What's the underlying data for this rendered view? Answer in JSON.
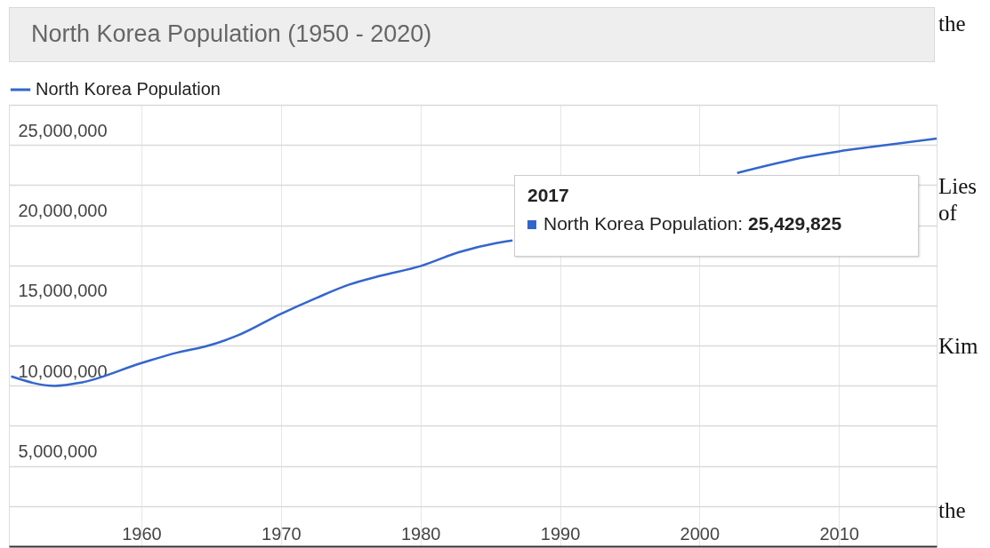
{
  "chart_data": {
    "type": "line",
    "title": "North Korea Population (1950 - 2020)",
    "x": [
      1950.66,
      1953.8,
      1955.7,
      1960,
      1962.6,
      1964.6,
      1966.9,
      1970,
      1972.6,
      1974.9,
      1977.2,
      1980,
      1982.8,
      1985.5,
      1986.6,
      1990,
      1995,
      2000,
      2002.7,
      2007.7,
      2010,
      2012.4,
      2017
    ],
    "series": [
      {
        "name": "North Korea Population",
        "color": "#3366cc",
        "values": [
          10580000,
          9990000,
          10200000,
          11410000,
          12070000,
          12450000,
          13130000,
          14480000,
          15490000,
          16300000,
          16860000,
          17450000,
          18330000,
          18900000,
          19050000,
          null,
          null,
          null,
          23250000,
          24260000,
          24600000,
          24880000,
          25400000
        ]
      }
    ],
    "xlim": [
      1950.5,
      2017
    ],
    "xticks": [
      1960,
      1970,
      1980,
      1990,
      2000,
      2010
    ],
    "ylim": [
      0,
      27500000
    ],
    "yticks": [
      {
        "value": 2500000,
        "label": null
      },
      {
        "value": 5000000,
        "label": "5,000,000"
      },
      {
        "value": 7500000,
        "label": null
      },
      {
        "value": 10000000,
        "label": "10,000,000"
      },
      {
        "value": 12500000,
        "label": null
      },
      {
        "value": 15000000,
        "label": "15,000,000"
      },
      {
        "value": 17500000,
        "label": null
      },
      {
        "value": 20000000,
        "label": "20,000,000"
      },
      {
        "value": 22500000,
        "label": null
      },
      {
        "value": 25000000,
        "label": "25,000,000"
      },
      {
        "value": 27500000,
        "label": null
      }
    ],
    "grid": true,
    "legend": "top left",
    "marker": "none",
    "line_style": "solid",
    "annotations": [
      "2017\nNorth Korea Population: 25,429,825",
      "the",
      "Lies of",
      "Kim",
      "the"
    ]
  }
}
